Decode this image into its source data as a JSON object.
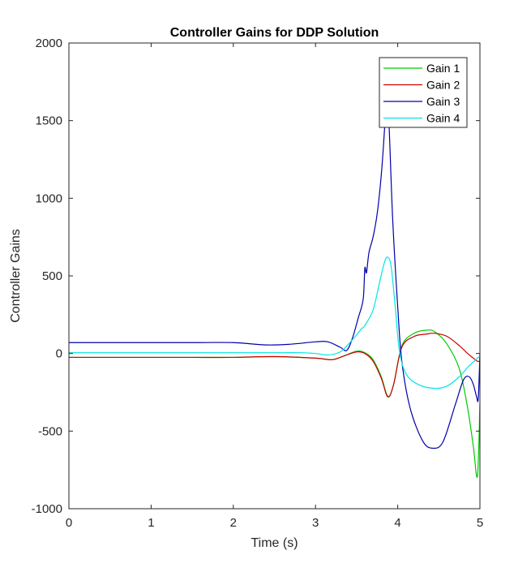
{
  "chart_data": {
    "type": "line",
    "title": "Controller Gains for DDP Solution",
    "xlabel": "Time (s)",
    "ylabel": "Controller Gains",
    "xlim": [
      0,
      5
    ],
    "ylim": [
      -1000,
      2000
    ],
    "xticks": [
      0,
      1,
      2,
      3,
      4,
      5
    ],
    "yticks": [
      -1000,
      -500,
      0,
      500,
      1000,
      1500,
      2000
    ],
    "xtick_labels": [
      "0",
      "1",
      "2",
      "3",
      "4",
      "5"
    ],
    "ytick_labels": [
      "-1000",
      "-500",
      "0",
      "500",
      "1000",
      "1500",
      "2000"
    ],
    "grid": false,
    "legend_position": "top-right",
    "series": [
      {
        "name": "Gain 1",
        "color": "#00cc00",
        "x": [
          0,
          0.5,
          1,
          1.5,
          2,
          2.5,
          3,
          3.2,
          3.35,
          3.5,
          3.6,
          3.7,
          3.8,
          3.88,
          3.95,
          4.05,
          4.2,
          4.35,
          4.45,
          4.6,
          4.75,
          4.85,
          4.92,
          4.97,
          5.0
        ],
        "y": [
          -25,
          -25,
          -25,
          -25,
          -25,
          -20,
          -30,
          -40,
          -15,
          15,
          5,
          -40,
          -150,
          -275,
          -200,
          50,
          130,
          150,
          140,
          60,
          -100,
          -350,
          -600,
          -790,
          -320
        ]
      },
      {
        "name": "Gain 2",
        "color": "#cc0000",
        "x": [
          0,
          0.5,
          1,
          1.5,
          2,
          2.5,
          3,
          3.2,
          3.35,
          3.5,
          3.6,
          3.7,
          3.8,
          3.88,
          3.95,
          4.05,
          4.2,
          4.35,
          4.45,
          4.6,
          4.75,
          4.85,
          4.92,
          4.97,
          5.0
        ],
        "y": [
          -25,
          -25,
          -25,
          -25,
          -25,
          -20,
          -30,
          -40,
          -15,
          10,
          0,
          -50,
          -160,
          -280,
          -200,
          40,
          110,
          125,
          130,
          110,
          50,
          0,
          -30,
          -50,
          -50
        ]
      },
      {
        "name": "Gain 3",
        "color": "#0000aa",
        "x": [
          0,
          0.5,
          1,
          1.5,
          2,
          2.4,
          2.7,
          3.0,
          3.15,
          3.3,
          3.38,
          3.45,
          3.52,
          3.58,
          3.6,
          3.62,
          3.65,
          3.7,
          3.75,
          3.8,
          3.84,
          3.87,
          3.9,
          3.94,
          4.0,
          4.05,
          4.15,
          4.3,
          4.42,
          4.55,
          4.7,
          4.8,
          4.87,
          4.92,
          4.96,
          4.98,
          5.0
        ],
        "y": [
          70,
          70,
          70,
          70,
          70,
          55,
          60,
          75,
          75,
          40,
          20,
          100,
          230,
          350,
          550,
          520,
          650,
          750,
          900,
          1150,
          1450,
          1750,
          1400,
          850,
          300,
          -50,
          -350,
          -560,
          -610,
          -570,
          -330,
          -170,
          -150,
          -200,
          -280,
          -290,
          0
        ]
      },
      {
        "name": "Gain 4",
        "color": "#00e5e5",
        "x": [
          0,
          0.5,
          1,
          1.5,
          2,
          2.5,
          2.8,
          3.0,
          3.15,
          3.3,
          3.4,
          3.5,
          3.56,
          3.6,
          3.7,
          3.78,
          3.84,
          3.88,
          3.92,
          3.97,
          4.02,
          4.1,
          4.25,
          4.45,
          4.6,
          4.75,
          4.85,
          4.93,
          4.97,
          5.0
        ],
        "y": [
          5,
          5,
          5,
          5,
          5,
          5,
          5,
          0,
          -10,
          10,
          60,
          120,
          160,
          180,
          280,
          460,
          590,
          620,
          560,
          300,
          20,
          -130,
          -200,
          -225,
          -210,
          -150,
          -90,
          -50,
          -30,
          -20
        ]
      }
    ]
  }
}
